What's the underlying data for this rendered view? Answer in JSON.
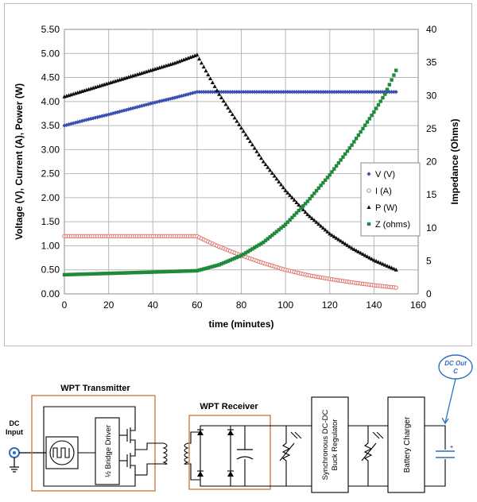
{
  "chart_data": {
    "type": "scatter",
    "xlabel": "time (minutes)",
    "ylabel_left": "Voltage (V), Current (A), Power (W)",
    "ylabel_right": "Impedance (Ohms)",
    "xlim": [
      0,
      160
    ],
    "ylim_left": [
      0,
      5.5
    ],
    "ylim_right": [
      0,
      40
    ],
    "x_ticks": [
      "0",
      "20",
      "40",
      "60",
      "80",
      "100",
      "120",
      "140",
      "160"
    ],
    "y_ticks_left": [
      "0.00",
      "0.50",
      "1.00",
      "1.50",
      "2.00",
      "2.50",
      "3.00",
      "3.50",
      "4.00",
      "4.50",
      "5.00",
      "5.50"
    ],
    "y_ticks_right": [
      "0",
      "5",
      "10",
      "15",
      "20",
      "25",
      "30",
      "35",
      "40"
    ],
    "grid": true,
    "legend_position": "right-middle",
    "series": [
      {
        "name": "V (V)",
        "label": "V (V)",
        "color": "#3a4fb0",
        "marker": "diamond",
        "axis": "left",
        "x": [
          0,
          10,
          20,
          30,
          40,
          50,
          60,
          62,
          80,
          100,
          120,
          140,
          150
        ],
        "y": [
          3.5,
          3.62,
          3.73,
          3.85,
          3.97,
          4.08,
          4.2,
          4.2,
          4.2,
          4.2,
          4.2,
          4.2,
          4.2
        ]
      },
      {
        "name": "I (A)",
        "label": "I (A)",
        "color": "#e0736a",
        "marker": "circle",
        "axis": "left",
        "x": [
          0,
          20,
          40,
          60,
          62,
          70,
          80,
          90,
          100,
          110,
          120,
          130,
          140,
          150
        ],
        "y": [
          1.2,
          1.2,
          1.2,
          1.2,
          1.15,
          0.98,
          0.8,
          0.64,
          0.5,
          0.39,
          0.31,
          0.24,
          0.18,
          0.13
        ]
      },
      {
        "name": "P (W)",
        "label": "P (W)",
        "color": "#111111",
        "marker": "triangle",
        "axis": "left",
        "x": [
          0,
          10,
          20,
          30,
          40,
          50,
          60,
          62,
          70,
          80,
          90,
          100,
          110,
          120,
          130,
          140,
          150
        ],
        "y": [
          4.1,
          4.24,
          4.38,
          4.52,
          4.66,
          4.8,
          4.97,
          4.8,
          4.15,
          3.45,
          2.75,
          2.15,
          1.65,
          1.25,
          0.95,
          0.7,
          0.5
        ]
      },
      {
        "name": "Z (ohms)",
        "label": "Z (ohms)",
        "color": "#1f8a3a",
        "marker": "square",
        "axis": "right",
        "x": [
          0,
          20,
          40,
          60,
          70,
          80,
          90,
          100,
          110,
          120,
          130,
          140,
          145,
          150
        ],
        "y": [
          2.9,
          3.1,
          3.3,
          3.5,
          4.4,
          5.8,
          7.8,
          10.5,
          14.0,
          18.0,
          22.5,
          27.5,
          30.2,
          33.8
        ]
      }
    ]
  },
  "diagram": {
    "dc_input": "DC\nInput",
    "transmitter_title": "WPT Transmitter",
    "bridge_driver": "½ Bridge Driver",
    "receiver_title": "WPT Receiver",
    "buck_regulator": "Synchronous DC-DC\nBuck Regulator",
    "battery_charger": "Battery Charger",
    "dc_out": "DC Out\nC",
    "orange": "#c8743a",
    "callout_blue": "#2f6fc1"
  }
}
